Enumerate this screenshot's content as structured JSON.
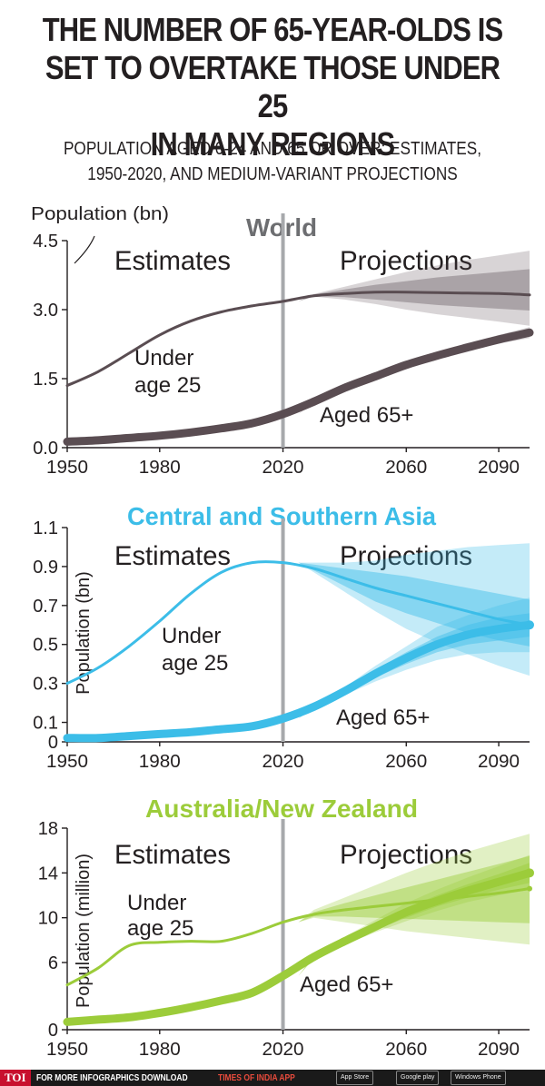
{
  "header": {
    "title_lines": [
      "THE NUMBER OF 65-YEAR-OLDS IS",
      "SET TO OVERTAKE THOSE UNDER 25",
      "IN MANY REGIONS"
    ],
    "subtitle_lines": [
      "POPULATION AGED 0-24 AND 65 OR OVER: ESTIMATES,",
      "1950-2020, AND MEDIUM-VARIANT PROJECTIONS"
    ]
  },
  "colors": {
    "world": "#5a4d52",
    "asia": "#3cbde8",
    "anz": "#9ccc3a",
    "divider": "#a7a9ac",
    "text": "#231f20",
    "footer_bg": "#1a1a1a",
    "toi_red": "#c8102e"
  },
  "chart_data": [
    {
      "type": "line",
      "title": "World",
      "ylabel": "Population (bn)",
      "ylabel_style": "horizontal",
      "xlim": [
        1950,
        2100
      ],
      "ylim": [
        0,
        4.5
      ],
      "yticks": [
        0,
        1.5,
        3,
        4.5
      ],
      "ytick_labels": [
        "0.0",
        "1.5",
        "3.0",
        "4.5"
      ],
      "xticks": [
        1950,
        1980,
        2020,
        2060,
        2090
      ],
      "divider_year": 2020,
      "left_label": "Estimates",
      "right_label": "Projections",
      "color": "#5a4d52",
      "series": [
        {
          "name": "Under age 25",
          "label_lines": [
            "Under",
            "age 25"
          ],
          "x": [
            1950,
            1960,
            1970,
            1980,
            1990,
            2000,
            2010,
            2020,
            2030,
            2040,
            2050,
            2060,
            2070,
            2080,
            2090,
            2100
          ],
          "y": [
            1.35,
            1.65,
            2.05,
            2.45,
            2.75,
            2.95,
            3.08,
            3.18,
            3.3,
            3.35,
            3.38,
            3.38,
            3.37,
            3.36,
            3.35,
            3.32
          ],
          "band_year": [
            2030,
            2040,
            2050,
            2060,
            2070,
            2080,
            2090,
            2100
          ],
          "band_outer": [
            [
              3.28,
              3.34
            ],
            [
              3.22,
              3.5
            ],
            [
              3.12,
              3.66
            ],
            [
              3.0,
              3.82
            ],
            [
              2.9,
              3.96
            ],
            [
              2.82,
              4.08
            ],
            [
              2.74,
              4.18
            ],
            [
              2.65,
              4.28
            ]
          ],
          "band_inner": [
            [
              3.29,
              3.33
            ],
            [
              3.27,
              3.44
            ],
            [
              3.22,
              3.54
            ],
            [
              3.16,
              3.62
            ],
            [
              3.1,
              3.7
            ],
            [
              3.06,
              3.76
            ],
            [
              3.02,
              3.82
            ],
            [
              2.98,
              3.88
            ]
          ]
        },
        {
          "name": "Aged 65+",
          "label_lines": [
            "Aged 65+"
          ],
          "x": [
            1950,
            1960,
            1970,
            1980,
            1990,
            2000,
            2010,
            2020,
            2030,
            2040,
            2050,
            2060,
            2070,
            2080,
            2090,
            2100
          ],
          "y": [
            0.13,
            0.16,
            0.21,
            0.26,
            0.33,
            0.42,
            0.53,
            0.73,
            1.0,
            1.3,
            1.55,
            1.8,
            2.0,
            2.18,
            2.35,
            2.5
          ],
          "band_year": [
            2030,
            2040,
            2050,
            2060,
            2070,
            2080,
            2090,
            2100
          ],
          "band_outer": [
            [
              0.98,
              1.02
            ],
            [
              1.27,
              1.33
            ],
            [
              1.51,
              1.59
            ],
            [
              1.75,
              1.85
            ],
            [
              1.93,
              2.07
            ],
            [
              2.1,
              2.26
            ],
            [
              2.26,
              2.45
            ],
            [
              2.38,
              2.62
            ]
          ],
          "band_inner": [
            [
              0.99,
              1.01
            ],
            [
              1.28,
              1.32
            ],
            [
              1.53,
              1.57
            ],
            [
              1.77,
              1.83
            ],
            [
              1.96,
              2.04
            ],
            [
              2.13,
              2.23
            ],
            [
              2.3,
              2.4
            ],
            [
              2.43,
              2.57
            ]
          ]
        }
      ]
    },
    {
      "type": "line",
      "title": "Central and Southern Asia",
      "ylabel": "Population (bn)",
      "ylabel_style": "vertical",
      "xlim": [
        1950,
        2100
      ],
      "ylim": [
        0,
        1.1
      ],
      "yticks": [
        0,
        0.1,
        0.3,
        0.5,
        0.7,
        0.9,
        1.1
      ],
      "ytick_labels": [
        "0",
        "0.1",
        "0.3",
        "0.5",
        "0.7",
        "0.9",
        "1.1"
      ],
      "xticks": [
        1950,
        1980,
        2020,
        2060,
        2090
      ],
      "divider_year": 2020,
      "left_label": "Estimates",
      "right_label": "Projections",
      "color": "#3cbde8",
      "series": [
        {
          "name": "Under age 25",
          "label_lines": [
            "Under",
            "age 25"
          ],
          "x": [
            1950,
            1960,
            1970,
            1980,
            1990,
            2000,
            2010,
            2020,
            2030,
            2040,
            2050,
            2060,
            2070,
            2080,
            2090,
            2100
          ],
          "y": [
            0.3,
            0.38,
            0.49,
            0.62,
            0.76,
            0.87,
            0.92,
            0.92,
            0.89,
            0.84,
            0.79,
            0.75,
            0.71,
            0.67,
            0.63,
            0.6
          ],
          "band_year": [
            2030,
            2040,
            2050,
            2060,
            2070,
            2080,
            2090,
            2100
          ],
          "band_outer": [
            [
              0.87,
              0.92
            ],
            [
              0.77,
              0.92
            ],
            [
              0.67,
              0.93
            ],
            [
              0.58,
              0.96
            ],
            [
              0.51,
              0.98
            ],
            [
              0.45,
              1.0
            ],
            [
              0.39,
              1.01
            ],
            [
              0.34,
              1.02
            ]
          ],
          "band_inner": [
            [
              0.88,
              0.91
            ],
            [
              0.8,
              0.89
            ],
            [
              0.72,
              0.87
            ],
            [
              0.66,
              0.85
            ],
            [
              0.61,
              0.82
            ],
            [
              0.56,
              0.79
            ],
            [
              0.52,
              0.76
            ],
            [
              0.49,
              0.73
            ]
          ]
        },
        {
          "name": "Aged 65+",
          "label_lines": [
            "Aged 65+"
          ],
          "x": [
            1950,
            1960,
            1970,
            1980,
            1990,
            2000,
            2010,
            2020,
            2030,
            2040,
            2050,
            2060,
            2070,
            2080,
            2090,
            2100
          ],
          "y": [
            0.02,
            0.02,
            0.03,
            0.04,
            0.05,
            0.065,
            0.08,
            0.12,
            0.18,
            0.26,
            0.35,
            0.43,
            0.5,
            0.55,
            0.58,
            0.6
          ],
          "band_year": [
            2030,
            2040,
            2050,
            2060,
            2070,
            2080,
            2090,
            2100
          ],
          "band_outer": [
            [
              0.17,
              0.19
            ],
            [
              0.24,
              0.28
            ],
            [
              0.31,
              0.39
            ],
            [
              0.37,
              0.49
            ],
            [
              0.42,
              0.59
            ],
            [
              0.45,
              0.65
            ],
            [
              0.46,
              0.7
            ],
            [
              0.46,
              0.74
            ]
          ],
          "band_inner": [
            [
              0.175,
              0.185
            ],
            [
              0.25,
              0.27
            ],
            [
              0.33,
              0.37
            ],
            [
              0.4,
              0.46
            ],
            [
              0.46,
              0.54
            ],
            [
              0.5,
              0.6
            ],
            [
              0.52,
              0.64
            ],
            [
              0.54,
              0.66
            ]
          ]
        }
      ]
    },
    {
      "type": "line",
      "title": "Australia/New Zealand",
      "ylabel": "Population (million)",
      "ylabel_style": "vertical",
      "xlim": [
        1950,
        2100
      ],
      "ylim": [
        0,
        18
      ],
      "yticks": [
        0,
        6,
        10,
        14,
        18
      ],
      "ytick_labels": [
        "0",
        "6",
        "10",
        "14",
        "18"
      ],
      "xticks": [
        1950,
        1980,
        2020,
        2060,
        2090
      ],
      "divider_year": 2020,
      "left_label": "Estimates",
      "right_label": "Projections",
      "color": "#9ccc3a",
      "series": [
        {
          "name": "Under age 25",
          "label_lines": [
            "Under",
            "age 25"
          ],
          "x": [
            1950,
            1960,
            1970,
            1980,
            1990,
            2000,
            2010,
            2020,
            2030,
            2040,
            2050,
            2060,
            2070,
            2080,
            2090,
            2100
          ],
          "y": [
            4.0,
            5.5,
            7.5,
            7.8,
            7.9,
            7.9,
            8.6,
            9.6,
            10.3,
            10.7,
            11.0,
            11.3,
            11.6,
            11.9,
            12.2,
            12.6
          ],
          "band_year": [
            2030,
            2040,
            2050,
            2060,
            2070,
            2080,
            2090,
            2100
          ],
          "band_outer": [
            [
              10.0,
              10.7
            ],
            [
              9.6,
              11.8
            ],
            [
              9.2,
              12.9
            ],
            [
              8.8,
              14.0
            ],
            [
              8.5,
              15.0
            ],
            [
              8.2,
              15.9
            ],
            [
              7.9,
              16.7
            ],
            [
              7.6,
              17.5
            ]
          ],
          "band_inner": [
            [
              10.1,
              10.5
            ],
            [
              10.1,
              11.3
            ],
            [
              10.0,
              12.0
            ],
            [
              9.9,
              12.7
            ],
            [
              9.8,
              13.4
            ],
            [
              9.7,
              14.1
            ],
            [
              9.6,
              14.8
            ],
            [
              9.5,
              15.5
            ]
          ]
        },
        {
          "name": "Aged 65+",
          "label_lines": [
            "Aged 65+"
          ],
          "x": [
            1950,
            1960,
            1970,
            1980,
            1990,
            2000,
            2010,
            2020,
            2030,
            2040,
            2050,
            2060,
            2070,
            2080,
            2090,
            2100
          ],
          "y": [
            0.7,
            0.9,
            1.1,
            1.5,
            2.0,
            2.6,
            3.3,
            4.8,
            6.5,
            7.9,
            9.2,
            10.5,
            11.5,
            12.4,
            13.2,
            14.0
          ],
          "band_year": [
            2030,
            2040,
            2050,
            2060,
            2070,
            2080,
            2090,
            2100
          ],
          "band_outer": [
            [
              6.3,
              6.7
            ],
            [
              7.6,
              8.3
            ],
            [
              8.7,
              9.8
            ],
            [
              9.7,
              11.3
            ],
            [
              10.6,
              12.5
            ],
            [
              11.4,
              13.6
            ],
            [
              12.0,
              14.6
            ],
            [
              12.5,
              15.6
            ]
          ],
          "band_inner": [
            [
              6.4,
              6.6
            ],
            [
              7.7,
              8.1
            ],
            [
              8.9,
              9.5
            ],
            [
              10.0,
              10.9
            ],
            [
              11.0,
              12.0
            ],
            [
              11.8,
              13.0
            ],
            [
              12.5,
              13.9
            ],
            [
              13.1,
              14.9
            ]
          ]
        }
      ]
    }
  ],
  "footer": {
    "logo": "TOI",
    "text": "FOR MORE  INFOGRAPHICS DOWNLOAD",
    "brand": "TIMES OF INDIA  APP",
    "stores": [
      "App Store",
      "Google play",
      "Windows Phone"
    ]
  }
}
